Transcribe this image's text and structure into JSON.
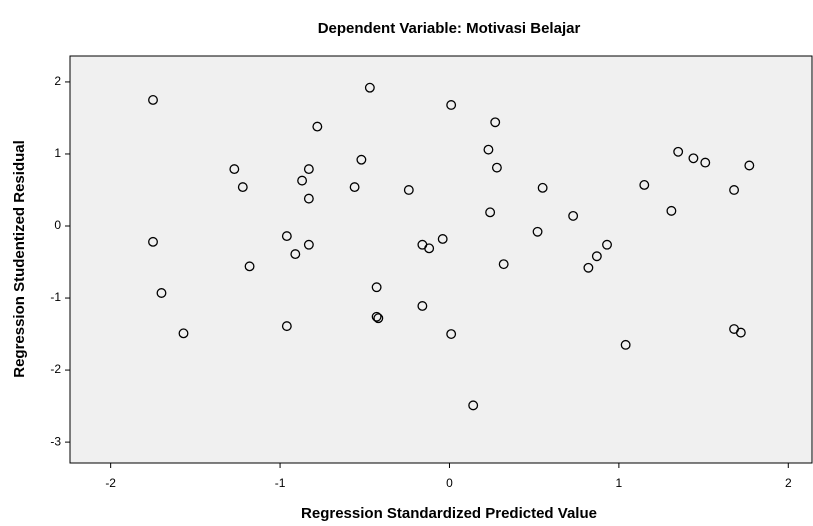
{
  "chart_data": {
    "type": "scatter",
    "title": "Dependent Variable: Motivasi Belajar",
    "xlabel": "Regression Standardized Predicted Value",
    "ylabel": "Regression Studentized Residual",
    "xlim": [
      -2.24,
      2.14
    ],
    "ylim": [
      -3.29,
      2.36
    ],
    "xticks": [
      -2,
      -1,
      0,
      1,
      2
    ],
    "yticks": [
      -3,
      -2,
      -1,
      0,
      1,
      2
    ],
    "color": "#000000",
    "background": "#f0f0f0",
    "x": [
      -1.75,
      -1.75,
      -1.7,
      -1.57,
      -1.27,
      -1.22,
      -1.18,
      -0.96,
      -0.96,
      -0.91,
      -0.87,
      -0.83,
      -0.83,
      -0.83,
      -0.78,
      -0.56,
      -0.52,
      -0.47,
      -0.43,
      -0.43,
      -0.42,
      -0.24,
      -0.16,
      -0.16,
      -0.12,
      -0.04,
      0.01,
      0.01,
      0.14,
      0.23,
      0.24,
      0.27,
      0.28,
      0.32,
      0.52,
      0.55,
      0.73,
      0.82,
      0.87,
      0.93,
      1.04,
      1.15,
      1.31,
      1.35,
      1.44,
      1.51,
      1.68,
      1.77,
      1.68,
      1.72
    ],
    "values": [
      1.75,
      -0.22,
      -0.93,
      -1.49,
      0.79,
      0.54,
      -0.56,
      -0.14,
      -1.39,
      -0.39,
      0.63,
      0.79,
      0.38,
      -0.26,
      1.38,
      0.54,
      0.92,
      1.92,
      -0.85,
      -1.26,
      -1.28,
      0.5,
      -0.26,
      -1.11,
      -0.31,
      -0.18,
      1.68,
      -1.5,
      -2.49,
      1.06,
      0.19,
      1.44,
      0.81,
      -0.53,
      -0.08,
      0.53,
      0.14,
      -0.58,
      -0.42,
      -0.26,
      -1.65,
      0.57,
      0.21,
      1.03,
      0.94,
      0.88,
      0.5,
      0.84,
      -1.43,
      -1.48
    ]
  }
}
